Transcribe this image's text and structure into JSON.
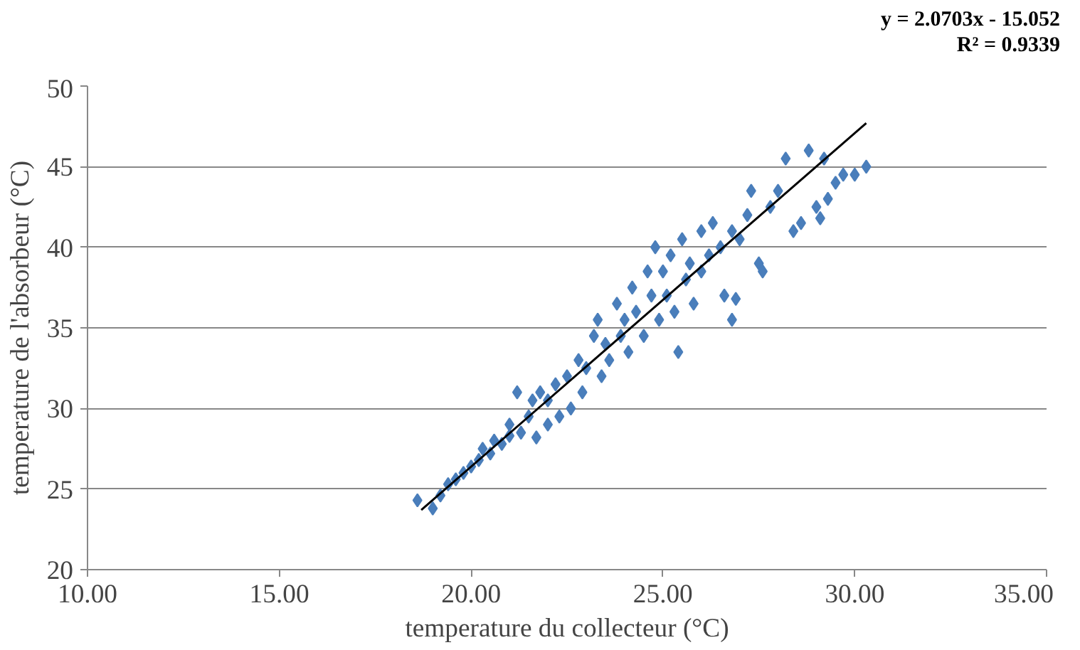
{
  "chart_data": {
    "type": "scatter",
    "xlabel": "temperature du collecteur (°C)",
    "ylabel": "temperature de l'absorbeur (°C)",
    "annotations": [
      "y = 2.0703x - 15.052",
      "R² = 0.9339"
    ],
    "xlim": [
      10,
      35
    ],
    "ylim": [
      20,
      50
    ],
    "xticks": [
      {
        "value": 10,
        "label": "10.00"
      },
      {
        "value": 15,
        "label": "15.00"
      },
      {
        "value": 20,
        "label": "20.00"
      },
      {
        "value": 25,
        "label": "25.00"
      },
      {
        "value": 30,
        "label": "30.00"
      },
      {
        "value": 35,
        "label": "35.00"
      }
    ],
    "yticks": [
      20,
      25,
      30,
      35,
      40,
      45,
      50
    ],
    "grid": "y",
    "marker": "diamond",
    "series": [
      {
        "color": "#4a7ebb",
        "x": [
          18.6,
          19.0,
          19.2,
          19.4,
          19.6,
          19.8,
          20.0,
          20.2,
          20.3,
          20.5,
          20.6,
          20.8,
          21.0,
          21.0,
          21.2,
          21.3,
          21.5,
          21.6,
          21.7,
          21.8,
          22.0,
          22.0,
          22.2,
          22.3,
          22.5,
          22.6,
          22.8,
          22.9,
          23.0,
          23.2,
          23.3,
          23.4,
          23.5,
          23.6,
          23.8,
          23.9,
          24.0,
          24.1,
          24.2,
          24.3,
          24.5,
          24.6,
          24.7,
          24.8,
          24.9,
          25.0,
          25.1,
          25.2,
          25.3,
          25.4,
          25.5,
          25.6,
          25.7,
          25.8,
          26.0,
          26.0,
          26.2,
          26.3,
          26.5,
          26.6,
          26.8,
          26.8,
          27.0,
          27.2,
          27.3,
          27.5,
          27.6,
          27.8,
          28.0,
          28.2,
          28.4,
          28.6,
          28.8,
          29.0,
          29.2,
          29.3,
          29.5,
          29.7,
          30.0,
          30.3,
          29.1,
          26.9
        ],
        "values": [
          24.3,
          23.8,
          24.6,
          25.3,
          25.6,
          26.0,
          26.4,
          26.8,
          27.5,
          27.2,
          28.0,
          27.8,
          28.3,
          29.0,
          31.0,
          28.5,
          29.5,
          30.5,
          28.2,
          31.0,
          29.0,
          30.5,
          31.5,
          29.5,
          32.0,
          30.0,
          33.0,
          31.0,
          32.5,
          34.5,
          35.5,
          32.0,
          34.0,
          33.0,
          36.5,
          34.5,
          35.5,
          33.5,
          37.5,
          36.0,
          34.5,
          38.5,
          37.0,
          40.0,
          35.5,
          38.5,
          37.0,
          39.5,
          36.0,
          33.5,
          40.5,
          38.0,
          39.0,
          36.5,
          41.0,
          38.5,
          39.5,
          41.5,
          40.0,
          37.0,
          35.5,
          41.0,
          40.5,
          42.0,
          43.5,
          39.0,
          38.5,
          42.5,
          43.5,
          45.5,
          41.0,
          41.5,
          46.0,
          42.5,
          45.5,
          43.0,
          44.0,
          44.5,
          44.5,
          45.0,
          41.8,
          36.8
        ]
      },
      {
        "type": "line",
        "color": "#000000",
        "marker": "none",
        "x": [
          18.7,
          30.3
        ],
        "values": [
          23.7,
          47.7
        ]
      }
    ]
  }
}
